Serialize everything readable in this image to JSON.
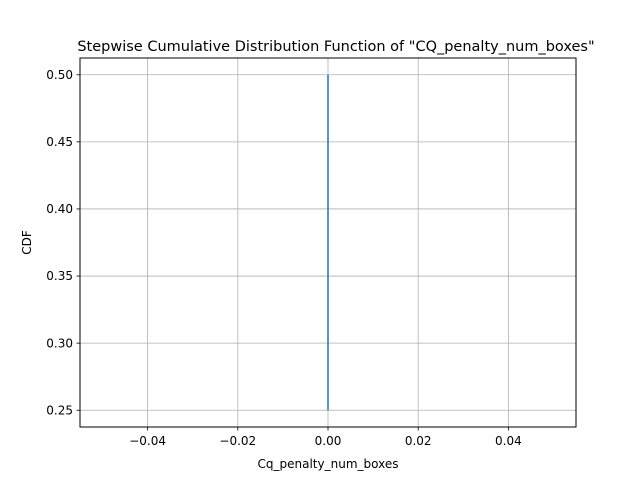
{
  "chart_data": {
    "type": "line",
    "title": "Stepwise Cumulative Distribution Function of \"CQ_penalty_num_boxes\"",
    "xlabel": "Cq_penalty_num_boxes",
    "ylabel": "CDF",
    "xlim": [
      -0.055,
      0.055
    ],
    "ylim": [
      0.2375,
      0.5125
    ],
    "grid": true,
    "x_ticks": [
      -0.04,
      -0.02,
      0.0,
      0.02,
      0.04
    ],
    "x_tick_labels": [
      "−0.04",
      "−0.02",
      "0.00",
      "0.02",
      "0.04"
    ],
    "y_ticks": [
      0.25,
      0.3,
      0.35,
      0.4,
      0.45,
      0.5
    ],
    "y_tick_labels": [
      "0.25",
      "0.30",
      "0.35",
      "0.40",
      "0.45",
      "0.50"
    ],
    "series": [
      {
        "color": "#1f77b4",
        "x": [
          0,
          0
        ],
        "y": [
          0.25,
          0.5
        ]
      }
    ]
  }
}
